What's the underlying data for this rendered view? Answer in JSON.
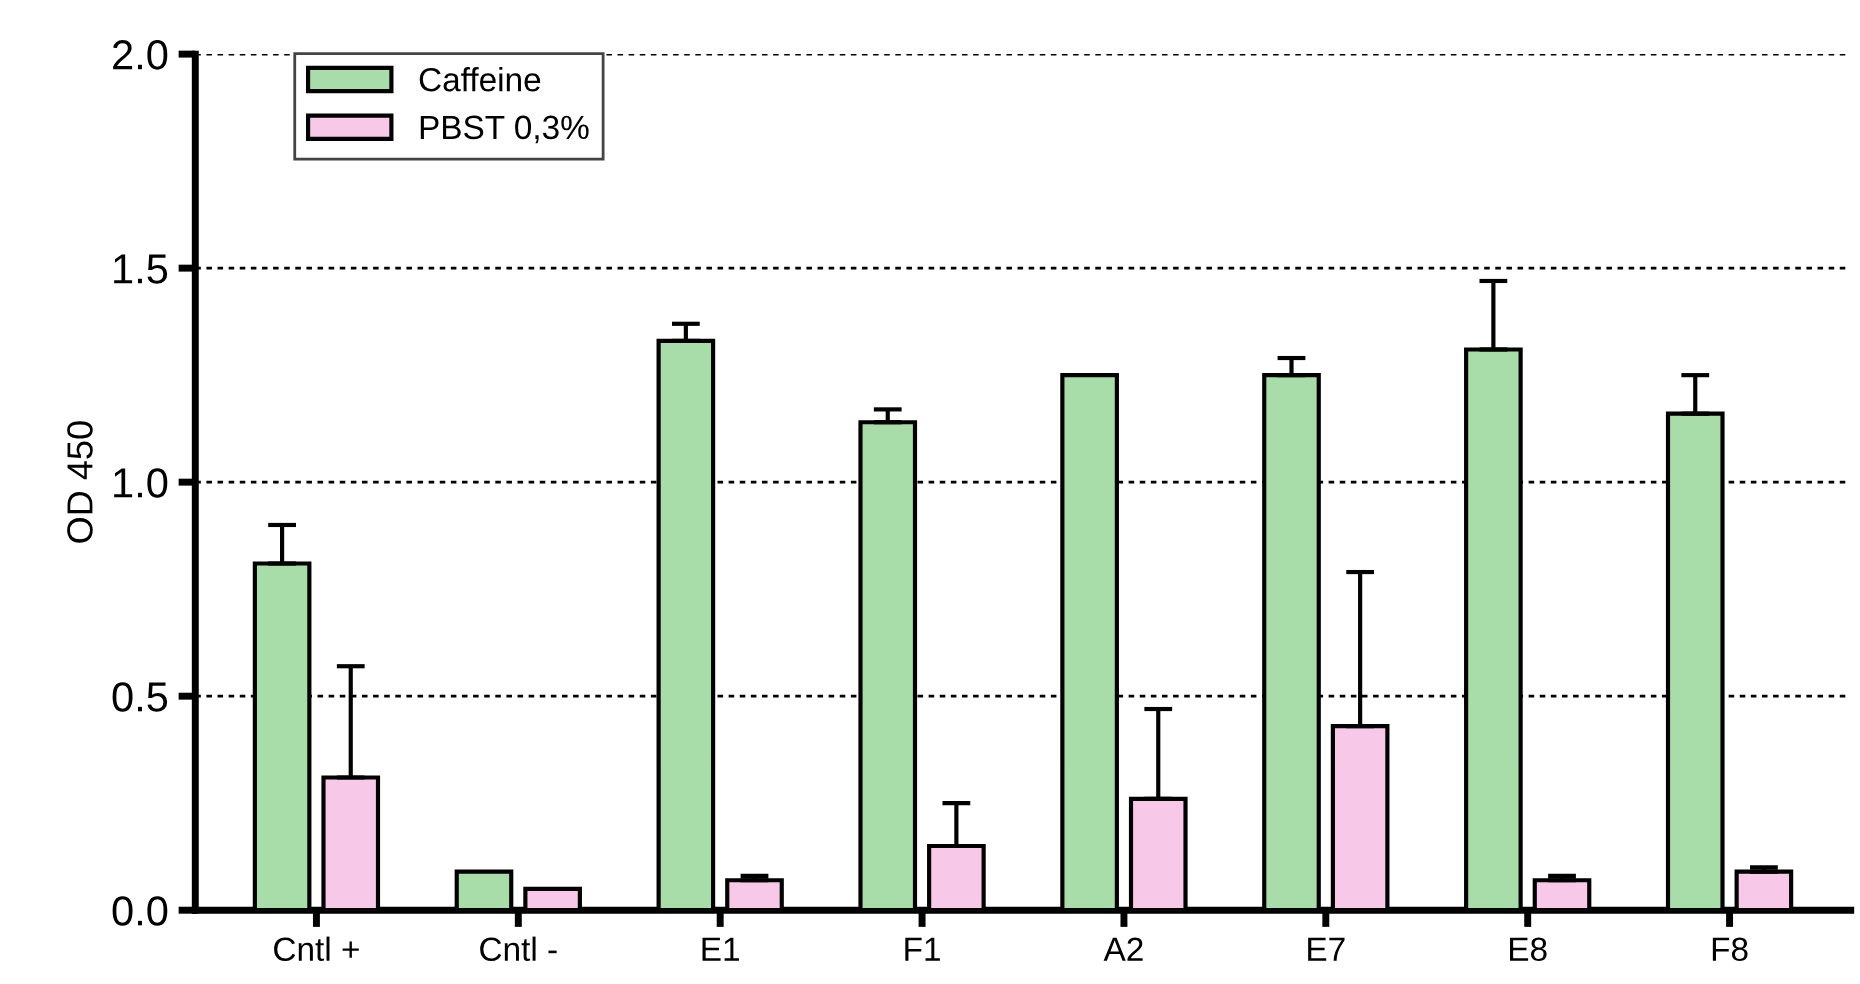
{
  "chart_data": {
    "type": "bar",
    "ylabel": "OD 450",
    "categories": [
      "Cntl +",
      "Cntl -",
      "E1",
      "F1",
      "A2",
      "E7",
      "E8",
      "F8"
    ],
    "series": [
      {
        "name": "Caffeine",
        "color": "#a8dca8",
        "values": [
          0.81,
          0.09,
          1.33,
          1.14,
          1.25,
          1.25,
          1.31,
          1.16
        ],
        "errors": [
          0.09,
          null,
          0.04,
          0.03,
          null,
          0.04,
          0.16,
          0.09
        ]
      },
      {
        "name": "PBST 0,3%",
        "color": "#f8c8e8",
        "values": [
          0.31,
          0.05,
          0.07,
          0.15,
          0.26,
          0.43,
          0.07,
          0.09
        ],
        "errors": [
          0.26,
          null,
          0.01,
          0.1,
          0.21,
          0.36,
          0.01,
          0.01
        ]
      }
    ],
    "ylim": [
      0,
      2.0
    ],
    "yticks": [
      {
        "value": 0,
        "label": "0.0"
      },
      {
        "value": 0.5,
        "label": "0.5"
      },
      {
        "value": 1.0,
        "label": "1.0"
      },
      {
        "value": 1.5,
        "label": "1.5"
      },
      {
        "value": 2.0,
        "label": "2.0"
      }
    ],
    "grid": "y",
    "legend": "top left"
  }
}
